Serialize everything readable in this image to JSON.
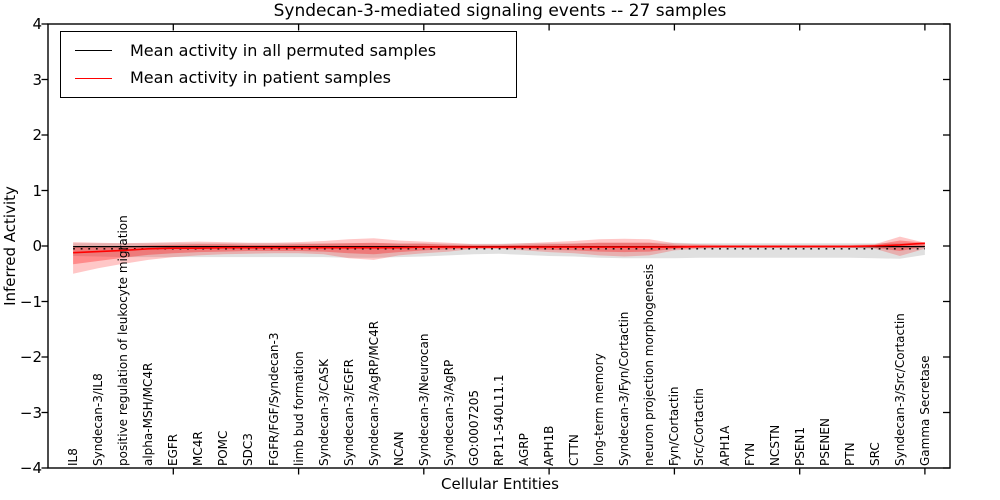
{
  "window": {
    "title": "Syndecan-3-mediated signaling events -- 27 samples"
  },
  "chart_data": {
    "type": "line",
    "title": "Syndecan-3-mediated signaling events -- 27 samples",
    "xlabel": "Cellular Entities",
    "ylabel": "Inferred Activity",
    "ylim": [
      -4,
      4
    ],
    "yticks": [
      4,
      3,
      2,
      1,
      0,
      -1,
      -2,
      -3,
      -4
    ],
    "ytick_labels": [
      "4",
      "3",
      "2",
      "1",
      "0",
      "−1",
      "−2",
      "−3",
      "−4"
    ],
    "xtick_major_values": [
      5,
      10,
      15,
      20,
      25,
      30,
      35
    ],
    "grid": false,
    "sample_count": 27,
    "categories": [
      "IL8",
      "Syndecan-3/IL8",
      "positive regulation of leukocyte migration",
      "alpha-MSH/MC4R",
      "EGFR",
      "MC4R",
      "POMC",
      "SDC3",
      "FGFR/FGF/Syndecan-3",
      "limb bud formation",
      "Syndecan-3/CASK",
      "Syndecan-3/EGFR",
      "Syndecan-3/AgRP/MC4R",
      "NCAN",
      "Syndecan-3/Neurocan",
      "Syndecan-3/AgRP",
      "GO:0007205",
      "RP11-540L11.1",
      "AGRP",
      "APH1B",
      "CTTN",
      "long-term memory",
      "Syndecan-3/Fyn/Cortactin",
      "neuron projection morphogenesis",
      "Fyn/Cortactin",
      "Src/Cortactin",
      "APH1A",
      "FYN",
      "NCSTN",
      "PSEN1",
      "PSENEN",
      "PTN",
      "SRC",
      "Syndecan-3/Src/Cortactin",
      "Gamma Secretase"
    ],
    "legend": {
      "position": "upper left",
      "entries": [
        {
          "label": "Mean activity in all permuted samples",
          "color": "#000000"
        },
        {
          "label": "Mean activity in patient samples",
          "color": "#ff0000"
        }
      ]
    },
    "series": [
      {
        "name": "mean-permuted",
        "color": "#000000",
        "style": "solid",
        "width": 1.2,
        "constant": -0.01
      },
      {
        "name": "permuted-dotted",
        "color": "#000000",
        "style": "dotted",
        "width": 1.3,
        "constant": -0.05
      },
      {
        "name": "mean-patient",
        "color": "#ff0000",
        "style": "solid",
        "width": 1.6,
        "values": [
          -0.12,
          -0.1,
          -0.08,
          -0.05,
          -0.04,
          -0.04,
          -0.03,
          -0.03,
          -0.03,
          -0.03,
          -0.03,
          -0.03,
          -0.03,
          -0.03,
          -0.02,
          -0.02,
          -0.02,
          -0.02,
          -0.02,
          -0.02,
          -0.02,
          -0.02,
          -0.02,
          -0.02,
          -0.02,
          -0.01,
          -0.01,
          -0.01,
          -0.01,
          -0.01,
          -0.01,
          -0.01,
          0.0,
          0.02,
          0.05
        ]
      }
    ],
    "bands": [
      {
        "name": "permuted-range",
        "color": "rgba(0,0,0,0.12)",
        "top": [
          0.05,
          0.05,
          0.05,
          0.05,
          0.05,
          0.05,
          0.05,
          0.05,
          0.05,
          0.05,
          0.05,
          0.05,
          0.05,
          0.05,
          0.05,
          0.04,
          0.04,
          0.04,
          0.05,
          0.05,
          0.05,
          0.06,
          0.06,
          0.06,
          0.06,
          0.05,
          0.05,
          0.05,
          0.05,
          0.05,
          0.05,
          0.05,
          0.05,
          0.06,
          0.05
        ],
        "bottom": [
          -0.18,
          -0.19,
          -0.2,
          -0.2,
          -0.2,
          -0.2,
          -0.2,
          -0.2,
          -0.2,
          -0.2,
          -0.2,
          -0.21,
          -0.21,
          -0.2,
          -0.19,
          -0.17,
          -0.15,
          -0.14,
          -0.16,
          -0.18,
          -0.19,
          -0.21,
          -0.22,
          -0.22,
          -0.22,
          -0.21,
          -0.21,
          -0.21,
          -0.21,
          -0.21,
          -0.21,
          -0.21,
          -0.22,
          -0.23,
          -0.16
        ]
      },
      {
        "name": "patient-outer",
        "color": "rgba(255,0,0,0.22)",
        "top": [
          0.07,
          0.06,
          0.05,
          0.06,
          0.07,
          0.08,
          0.07,
          0.06,
          0.06,
          0.07,
          0.09,
          0.12,
          0.14,
          0.1,
          0.08,
          0.06,
          0.03,
          0.03,
          0.05,
          0.07,
          0.09,
          0.12,
          0.13,
          0.12,
          0.05,
          0.03,
          0.02,
          0.02,
          0.02,
          0.02,
          0.02,
          0.02,
          0.03,
          0.17,
          0.06
        ],
        "bottom": [
          -0.5,
          -0.4,
          -0.32,
          -0.25,
          -0.2,
          -0.17,
          -0.15,
          -0.14,
          -0.13,
          -0.13,
          -0.15,
          -0.22,
          -0.25,
          -0.17,
          -0.13,
          -0.1,
          -0.05,
          -0.05,
          -0.08,
          -0.11,
          -0.13,
          -0.17,
          -0.19,
          -0.17,
          -0.08,
          -0.05,
          -0.03,
          -0.03,
          -0.03,
          -0.03,
          -0.03,
          -0.03,
          -0.05,
          -0.18,
          -0.05
        ]
      },
      {
        "name": "patient-inner",
        "color": "rgba(255,0,0,0.30)",
        "top": [
          -0.02,
          -0.01,
          -0.01,
          0.01,
          0.02,
          0.03,
          0.03,
          0.02,
          0.02,
          0.03,
          0.04,
          0.05,
          0.06,
          0.04,
          0.04,
          0.02,
          0.01,
          0.01,
          0.02,
          0.03,
          0.04,
          0.06,
          0.06,
          0.06,
          0.02,
          0.01,
          0.01,
          0.01,
          0.01,
          0.01,
          0.01,
          0.01,
          0.02,
          0.1,
          0.06
        ],
        "bottom": [
          -0.33,
          -0.27,
          -0.21,
          -0.16,
          -0.13,
          -0.11,
          -0.1,
          -0.09,
          -0.09,
          -0.09,
          -0.1,
          -0.13,
          -0.15,
          -0.11,
          -0.08,
          -0.06,
          -0.04,
          -0.04,
          -0.05,
          -0.07,
          -0.08,
          -0.1,
          -0.11,
          -0.1,
          -0.05,
          -0.03,
          -0.02,
          -0.02,
          -0.02,
          -0.02,
          -0.02,
          -0.02,
          -0.03,
          -0.09,
          -0.01
        ]
      }
    ]
  }
}
